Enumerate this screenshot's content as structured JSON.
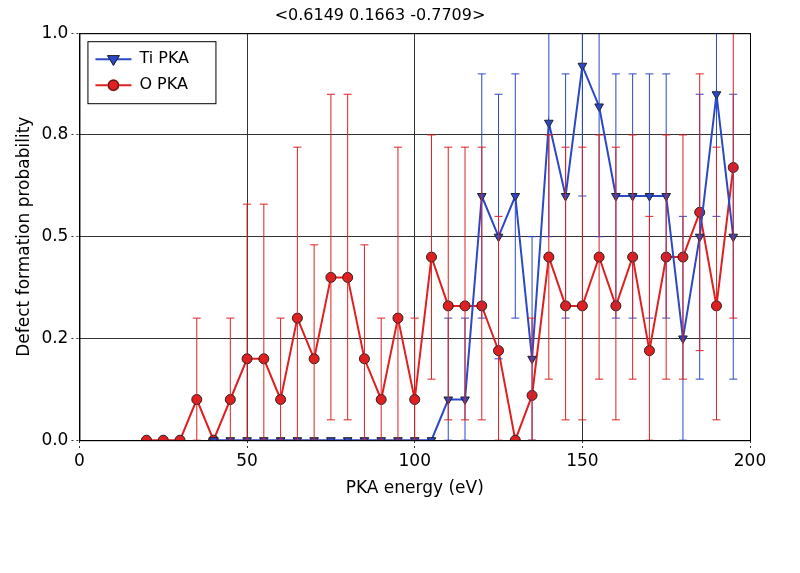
{
  "chart_data": {
    "type": "line",
    "title": "<0.6149 0.1663 -0.7709>",
    "x_label": "PKA energy (eV)",
    "y_label": "Defect formation probability",
    "x": [
      20,
      25,
      30,
      35,
      40,
      45,
      50,
      55,
      60,
      65,
      70,
      75,
      80,
      85,
      90,
      95,
      100,
      105,
      110,
      115,
      120,
      125,
      130,
      135,
      140,
      145,
      150,
      155,
      160,
      165,
      170,
      175,
      180,
      185,
      190,
      195
    ],
    "series": [
      {
        "name": "Ti PKA",
        "color": "#2a48c8",
        "marker": "triangle-down",
        "line_style": "solid",
        "values": [
          null,
          null,
          null,
          null,
          0,
          0,
          0,
          0,
          0,
          0,
          0,
          0,
          0,
          0,
          0,
          0,
          0,
          0,
          0.1,
          0.1,
          0.6,
          0.5,
          0.6,
          0.2,
          0.78,
          0.6,
          0.92,
          0.82,
          0.6,
          0.6,
          0.6,
          0.6,
          0.25,
          0.5,
          0.85,
          0.5
        ],
        "error_lower": [
          null,
          null,
          null,
          null,
          null,
          null,
          null,
          null,
          null,
          null,
          null,
          null,
          null,
          null,
          null,
          null,
          null,
          null,
          0,
          0,
          0.3,
          0.2,
          0.3,
          0,
          0.5,
          0.3,
          0.6,
          0.5,
          0.3,
          0.3,
          0.3,
          0.3,
          0,
          0.15,
          0.55,
          0.15
        ],
        "error_upper": [
          null,
          null,
          null,
          null,
          null,
          null,
          null,
          null,
          null,
          null,
          null,
          null,
          null,
          null,
          null,
          null,
          null,
          null,
          0.3,
          0.3,
          0.9,
          0.85,
          0.9,
          0.5,
          1.0,
          0.9,
          1.0,
          1.0,
          0.9,
          0.9,
          0.9,
          0.9,
          0.55,
          0.85,
          1.0,
          0.85
        ]
      },
      {
        "name": "O PKA",
        "color": "#e02020",
        "marker": "circle",
        "line_style": "solid",
        "values": [
          0,
          0,
          0,
          0.1,
          0,
          0.1,
          0.2,
          0.2,
          0.1,
          0.3,
          0.2,
          0.4,
          0.4,
          0.2,
          0.1,
          0.3,
          0.1,
          0.45,
          0.33,
          0.33,
          0.33,
          0.22,
          0,
          0.11,
          0.45,
          0.33,
          0.33,
          0.45,
          0.33,
          0.45,
          0.22,
          0.45,
          0.45,
          0.56,
          0.33,
          0.67
        ],
        "error_lower": [
          null,
          null,
          null,
          0,
          null,
          0,
          0,
          0,
          0,
          0,
          0,
          0.05,
          0.05,
          0,
          0,
          0,
          0,
          0.15,
          0.05,
          0.05,
          0.05,
          0,
          null,
          0,
          0.15,
          0.05,
          0.05,
          0.15,
          0.05,
          0.15,
          0,
          0.15,
          0.15,
          0.22,
          0.05,
          0.3
        ],
        "error_upper": [
          null,
          null,
          null,
          0.3,
          null,
          0.3,
          0.58,
          0.58,
          0.3,
          0.72,
          0.48,
          0.85,
          0.85,
          0.48,
          0.3,
          0.72,
          0.3,
          0.75,
          0.72,
          0.72,
          0.72,
          0.55,
          null,
          0.3,
          0.75,
          0.72,
          0.72,
          0.75,
          0.72,
          0.75,
          0.55,
          0.75,
          0.75,
          0.9,
          0.72,
          1.0
        ]
      }
    ],
    "xlim": [
      0,
      200
    ],
    "xticks": [
      0,
      50,
      100,
      150,
      200
    ],
    "ylim": [
      0,
      1
    ],
    "yticks": [
      {
        "value": 0,
        "label": "0.0"
      },
      {
        "value": 0.25,
        "label": "0.2"
      },
      {
        "value": 0.5,
        "label": "0.5"
      },
      {
        "value": 0.75,
        "label": "0.8"
      },
      {
        "value": 1,
        "label": "1.0"
      }
    ],
    "grid": true,
    "legend": "upper left"
  }
}
